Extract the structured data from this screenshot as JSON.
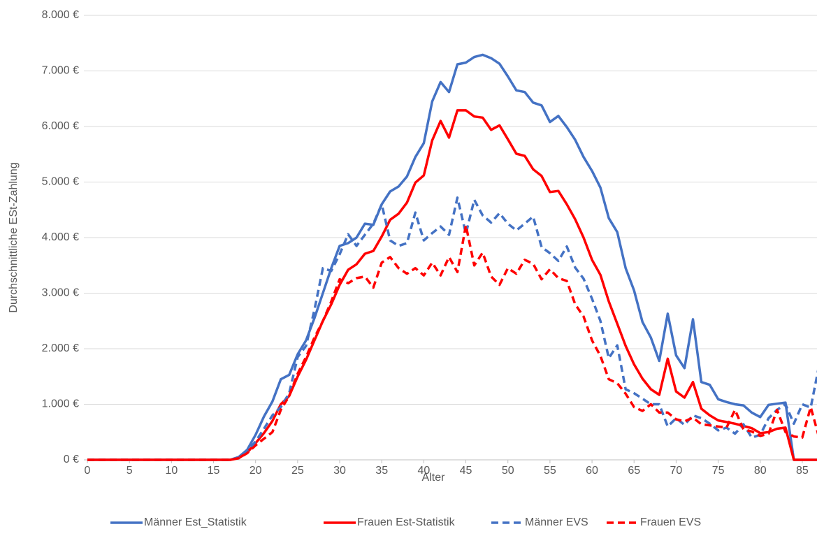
{
  "chart_data": {
    "type": "line",
    "x_label": "Alter",
    "y_label": "Durchschnittliche ESt-Zahlung",
    "x": [
      0,
      1,
      2,
      3,
      4,
      5,
      6,
      7,
      8,
      9,
      10,
      11,
      12,
      13,
      14,
      15,
      16,
      17,
      18,
      19,
      20,
      21,
      22,
      23,
      24,
      25,
      26,
      27,
      28,
      29,
      30,
      31,
      32,
      33,
      34,
      35,
      36,
      37,
      38,
      39,
      40,
      41,
      42,
      43,
      44,
      45,
      46,
      47,
      48,
      49,
      50,
      51,
      52,
      53,
      54,
      55,
      56,
      57,
      58,
      59,
      60,
      61,
      62,
      63,
      64,
      65,
      66,
      67,
      68,
      69,
      70,
      71,
      72,
      73,
      74,
      75,
      76,
      77,
      78,
      79,
      80,
      81,
      82,
      83,
      84,
      85,
      86,
      87
    ],
    "xlim": [
      0,
      87
    ],
    "xticks": [
      0,
      5,
      10,
      15,
      20,
      25,
      30,
      35,
      40,
      45,
      50,
      55,
      60,
      65,
      70,
      75,
      80,
      85
    ],
    "ylim": [
      0,
      8000
    ],
    "yticks": [
      {
        "value": 0,
        "label": "0 €"
      },
      {
        "value": 1000,
        "label": "1.000 €"
      },
      {
        "value": 2000,
        "label": "2.000 €"
      },
      {
        "value": 3000,
        "label": "3.000 €"
      },
      {
        "value": 4000,
        "label": "4.000 €"
      },
      {
        "value": 5000,
        "label": "5.000 €"
      },
      {
        "value": 6000,
        "label": "6.000 €"
      },
      {
        "value": 7000,
        "label": "7.000 €"
      },
      {
        "value": 8000,
        "label": "8.000 €"
      }
    ],
    "grid": true,
    "legend": "bottom",
    "series": [
      {
        "name": "Männer Est_Statistik",
        "color": "#4472c4",
        "dashed": false,
        "values": [
          0,
          0,
          0,
          0,
          0,
          0,
          0,
          0,
          0,
          0,
          0,
          0,
          0,
          0,
          0,
          0,
          0,
          0,
          50,
          180,
          450,
          780,
          1050,
          1450,
          1530,
          1900,
          2150,
          2550,
          3000,
          3450,
          3850,
          3900,
          4000,
          4250,
          4230,
          4600,
          4830,
          4920,
          5100,
          5450,
          5700,
          6450,
          6800,
          6620,
          7120,
          7150,
          7250,
          7290,
          7230,
          7130,
          6900,
          6650,
          6620,
          6430,
          6380,
          6080,
          6190,
          5990,
          5760,
          5450,
          5200,
          4900,
          4350,
          4100,
          3450,
          3050,
          2480,
          2200,
          1780,
          2630,
          1880,
          1650,
          2530,
          1400,
          1350,
          1090,
          1040,
          1000,
          980,
          850,
          770,
          990,
          1010,
          1030,
          0,
          0,
          0,
          0
        ]
      },
      {
        "name": "Frauen Est-Statistik",
        "color": "#ff0000",
        "dashed": false,
        "values": [
          0,
          0,
          0,
          0,
          0,
          0,
          0,
          0,
          0,
          0,
          0,
          0,
          0,
          0,
          0,
          0,
          0,
          0,
          30,
          130,
          300,
          480,
          700,
          1000,
          1150,
          1500,
          1800,
          2150,
          2500,
          2800,
          3150,
          3420,
          3520,
          3710,
          3760,
          4020,
          4320,
          4430,
          4630,
          4990,
          5120,
          5750,
          6100,
          5800,
          6290,
          6290,
          6180,
          6160,
          5940,
          6020,
          5770,
          5510,
          5470,
          5230,
          5110,
          4820,
          4840,
          4600,
          4330,
          4000,
          3600,
          3330,
          2850,
          2450,
          2050,
          1720,
          1460,
          1270,
          1170,
          1820,
          1230,
          1120,
          1400,
          920,
          800,
          710,
          680,
          650,
          610,
          570,
          480,
          500,
          560,
          580,
          0,
          0,
          0,
          0
        ]
      },
      {
        "name": "Männer EVS",
        "color": "#4472c4",
        "dashed": true,
        "values": [
          0,
          0,
          0,
          0,
          0,
          0,
          0,
          0,
          0,
          0,
          0,
          0,
          0,
          0,
          0,
          0,
          0,
          0,
          50,
          160,
          330,
          560,
          800,
          950,
          1200,
          1850,
          2050,
          2700,
          3450,
          3400,
          3700,
          4060,
          3850,
          4050,
          4250,
          4600,
          3950,
          3850,
          3900,
          4450,
          3950,
          4080,
          4200,
          4050,
          4720,
          4070,
          4680,
          4400,
          4270,
          4440,
          4250,
          4130,
          4250,
          4380,
          3830,
          3720,
          3580,
          3840,
          3460,
          3260,
          2900,
          2500,
          1830,
          2060,
          1270,
          1200,
          1100,
          1000,
          1000,
          600,
          750,
          630,
          800,
          750,
          650,
          530,
          580,
          470,
          640,
          400,
          450,
          750,
          900,
          1000,
          650,
          1000,
          940,
          1700
        ]
      },
      {
        "name": "Frauen EVS",
        "color": "#ff0000",
        "dashed": true,
        "values": [
          0,
          0,
          0,
          0,
          0,
          0,
          0,
          0,
          0,
          0,
          0,
          0,
          0,
          0,
          0,
          0,
          0,
          0,
          30,
          120,
          260,
          380,
          500,
          900,
          1150,
          1550,
          1850,
          2200,
          2500,
          2850,
          3250,
          3180,
          3270,
          3300,
          3100,
          3550,
          3650,
          3450,
          3350,
          3450,
          3320,
          3550,
          3320,
          3650,
          3380,
          4220,
          3500,
          3730,
          3300,
          3150,
          3450,
          3350,
          3600,
          3530,
          3250,
          3430,
          3270,
          3220,
          2800,
          2580,
          2150,
          1870,
          1450,
          1380,
          1190,
          950,
          880,
          1000,
          850,
          850,
          730,
          690,
          760,
          640,
          620,
          600,
          580,
          900,
          550,
          510,
          430,
          470,
          900,
          500,
          420,
          400,
          950,
          400
        ]
      }
    ]
  }
}
